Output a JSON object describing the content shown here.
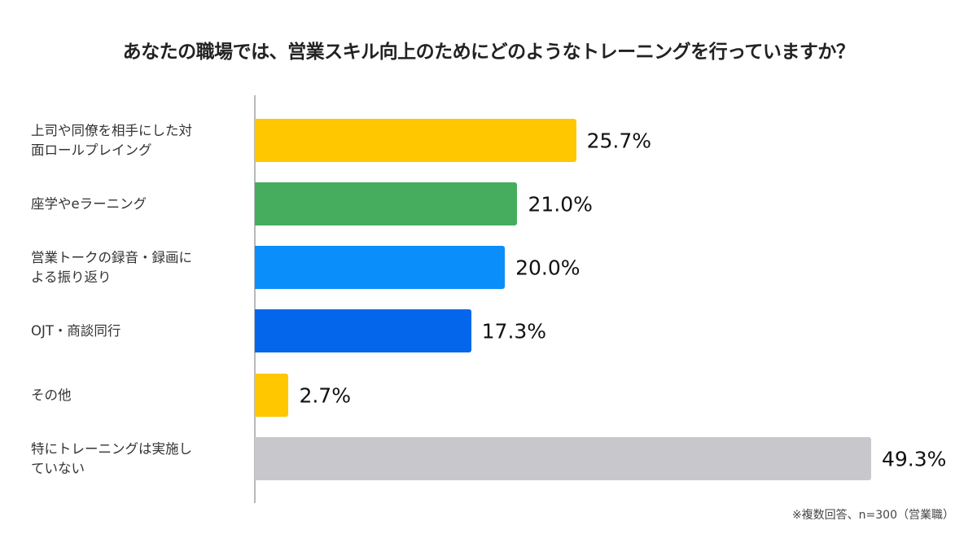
{
  "title": "あなたの職場では、営業スキル向上のためにどのようなトレーニングを行っていますか？",
  "note": "※複数回答、n=300（営業職）",
  "chart_data": {
    "type": "bar",
    "orientation": "horizontal",
    "title": "あなたの職場では、営業スキル向上のためにどのようなトレーニングを行っていますか？",
    "xlabel": "",
    "ylabel": "",
    "unit": "%",
    "grid": false,
    "legend": null,
    "annotation": "※複数回答、n=300（営業職）",
    "categories": [
      "上司や同僚を相手にした対面ロールプレイング",
      "座学やeラーニング",
      "営業トークの録音・録画による振り返り",
      "OJT・商談同行",
      "その他",
      "特にトレーニングは実施していない"
    ],
    "values": [
      25.7,
      21.0,
      20.0,
      17.3,
      2.7,
      49.3
    ],
    "colors": [
      "#FFC700",
      "#47AD5E",
      "#0A8FFA",
      "#0466EB",
      "#FFC700",
      "#C8C8CC"
    ]
  },
  "rows": [
    {
      "label": "上司や同僚を相手にした対\n面ロールプレイング",
      "value": 25.7,
      "value_label": "25.7%",
      "color": "#FFC700"
    },
    {
      "label": "座学やeラーニング",
      "value": 21.0,
      "value_label": "21.0%",
      "color": "#47AD5E"
    },
    {
      "label": "営業トークの録音・録画に\nよる振り返り",
      "value": 20.0,
      "value_label": "20.0%",
      "color": "#0A8FFA"
    },
    {
      "label": "OJT・商談同行",
      "value": 17.3,
      "value_label": "17.3%",
      "color": "#0466EB"
    },
    {
      "label": "その他",
      "value": 2.7,
      "value_label": "2.7%",
      "color": "#FFC700"
    },
    {
      "label": "特にトレーニングは実施し\nていない",
      "value": 49.3,
      "value_label": "49.3%",
      "color": "#C8C8CC"
    }
  ]
}
